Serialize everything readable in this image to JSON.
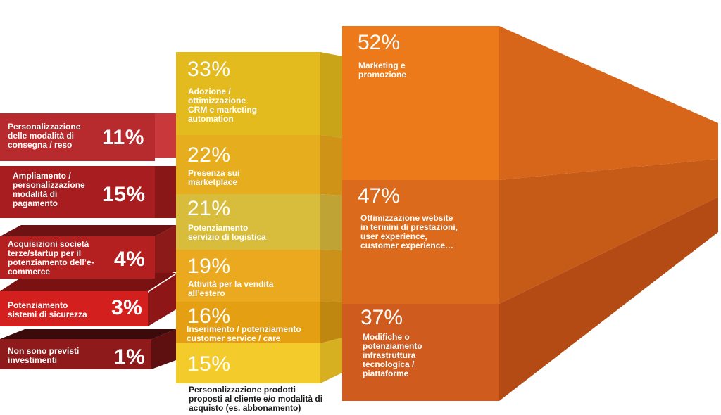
{
  "chart_data": {
    "type": "bar",
    "groups": [
      {
        "items": [
          {
            "label": "Personalizzazione delle modalità di consegna / reso",
            "value": 11,
            "value_text": "11%",
            "color": "#b72a2e"
          },
          {
            "label": "Ampliamento / personalizzazione modalità di pagamento",
            "value": 15,
            "value_text": "15%",
            "color": "#a81d1f"
          },
          {
            "label": "Acquisizioni società terze/startup per il potenziamento dell’e-commerce",
            "value": 4,
            "value_text": "4%",
            "color": "#b41f1f"
          },
          {
            "label": "Potenziamento sistemi di sicurezza",
            "value": 3,
            "value_text": "3%",
            "color": "#d3201f"
          },
          {
            "label": "Non sono previsti investimenti",
            "value": 1,
            "value_text": "1%",
            "color": "#8e1a1c"
          }
        ]
      },
      {
        "items": [
          {
            "label": "Adozione / ottimizzazione CRM e marketing automation",
            "value": 33,
            "value_text": "33%",
            "color": "#e4bb1e"
          },
          {
            "label": "Presenza sui marketplace",
            "value": 22,
            "value_text": "22%",
            "color": "#e6ad1e"
          },
          {
            "label": "Potenziamento servizio di logistica",
            "value": 21,
            "value_text": "21%",
            "color": "#d8bd3c"
          },
          {
            "label": "Attività per la vendita all’estero",
            "value": 19,
            "value_text": "19%",
            "color": "#eba920"
          },
          {
            "label": "Inserimento / potenziamento customer service / care",
            "value": 16,
            "value_text": "16%",
            "color": "#e49f12"
          },
          {
            "label": "Personalizzazione prodotti proposti al cliente e/o modalità di acquisto (es. abbonamento)",
            "value": 15,
            "value_text": "15%",
            "color": "#f3cc2c"
          }
        ]
      },
      {
        "items": [
          {
            "label": "Marketing e promozione",
            "value": 52,
            "value_text": "52%",
            "color": "#ec7a1a"
          },
          {
            "label": "Ottimizzazione website in termini di prestazioni, user experience, customer experience…",
            "value": 47,
            "value_text": "47%",
            "color": "#db6a1c"
          },
          {
            "label": "Modifiche o potenziamento infrastruttura tecnologica / piattaforme",
            "value": 37,
            "value_text": "37%",
            "color": "#cf5b1e"
          }
        ]
      }
    ]
  }
}
